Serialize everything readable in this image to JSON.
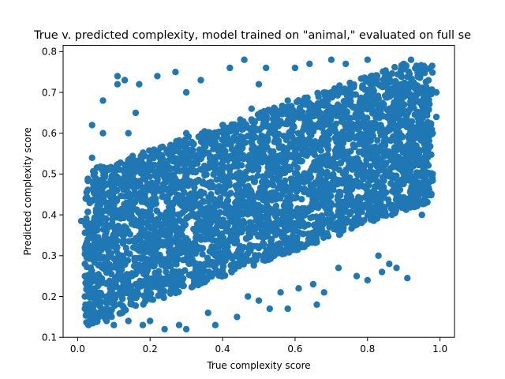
{
  "chart_data": {
    "type": "scatter",
    "title": "True v. predicted complexity, model trained on \"animal,\" evaluated on full se",
    "xlabel": "True complexity score",
    "ylabel": "Predicted complexity score",
    "xlim": [
      -0.04,
      1.04
    ],
    "ylim": [
      0.1,
      0.815
    ],
    "xticks": [
      {
        "value": 0.0,
        "label": "0.0"
      },
      {
        "value": 0.2,
        "label": "0.2"
      },
      {
        "value": 0.4,
        "label": "0.4"
      },
      {
        "value": 0.6,
        "label": "0.6"
      },
      {
        "value": 0.8,
        "label": "0.8"
      },
      {
        "value": 1.0,
        "label": "1.0"
      }
    ],
    "yticks": [
      {
        "value": 0.1,
        "label": "0.1"
      },
      {
        "value": 0.2,
        "label": "0.2"
      },
      {
        "value": 0.3,
        "label": "0.3"
      },
      {
        "value": 0.4,
        "label": "0.4"
      },
      {
        "value": 0.5,
        "label": "0.5"
      },
      {
        "value": 0.6,
        "label": "0.6"
      },
      {
        "value": 0.7,
        "label": "0.7"
      },
      {
        "value": 0.8,
        "label": "0.8"
      }
    ],
    "grid": false,
    "legend": "none",
    "marker_color": "#1f77b4",
    "points": [
      [
        0.01,
        0.385
      ],
      [
        0.02,
        0.32
      ],
      [
        0.02,
        0.28
      ],
      [
        0.02,
        0.25
      ],
      [
        0.02,
        0.2
      ],
      [
        0.02,
        0.17
      ],
      [
        0.03,
        0.13
      ],
      [
        0.03,
        0.3
      ],
      [
        0.04,
        0.54
      ],
      [
        0.04,
        0.62
      ],
      [
        0.05,
        0.49
      ],
      [
        0.06,
        0.4
      ],
      [
        0.06,
        0.33
      ],
      [
        0.07,
        0.68
      ],
      [
        0.07,
        0.6
      ],
      [
        0.05,
        0.16
      ],
      [
        0.08,
        0.14
      ],
      [
        0.09,
        0.22
      ],
      [
        0.1,
        0.13
      ],
      [
        0.11,
        0.72
      ],
      [
        0.11,
        0.74
      ],
      [
        0.13,
        0.73
      ],
      [
        0.14,
        0.14
      ],
      [
        0.17,
        0.72
      ],
      [
        0.18,
        0.13
      ],
      [
        0.2,
        0.14
      ],
      [
        0.22,
        0.74
      ],
      [
        0.24,
        0.12
      ],
      [
        0.27,
        0.75
      ],
      [
        0.28,
        0.13
      ],
      [
        0.3,
        0.12
      ],
      [
        0.34,
        0.73
      ],
      [
        0.36,
        0.16
      ],
      [
        0.38,
        0.13
      ],
      [
        0.42,
        0.76
      ],
      [
        0.44,
        0.15
      ],
      [
        0.46,
        0.78
      ],
      [
        0.47,
        0.2
      ],
      [
        0.5,
        0.19
      ],
      [
        0.52,
        0.76
      ],
      [
        0.53,
        0.17
      ],
      [
        0.56,
        0.21
      ],
      [
        0.58,
        0.17
      ],
      [
        0.6,
        0.76
      ],
      [
        0.61,
        0.22
      ],
      [
        0.64,
        0.77
      ],
      [
        0.65,
        0.23
      ],
      [
        0.66,
        0.18
      ],
      [
        0.68,
        0.21
      ],
      [
        0.7,
        0.78
      ],
      [
        0.72,
        0.27
      ],
      [
        0.74,
        0.77
      ],
      [
        0.77,
        0.25
      ],
      [
        0.8,
        0.24
      ],
      [
        0.8,
        0.78
      ],
      [
        0.83,
        0.3
      ],
      [
        0.84,
        0.26
      ],
      [
        0.86,
        0.28
      ],
      [
        0.88,
        0.27
      ],
      [
        0.9,
        0.77
      ],
      [
        0.91,
        0.245
      ],
      [
        0.92,
        0.78
      ],
      [
        0.95,
        0.4
      ],
      [
        0.96,
        0.46
      ],
      [
        0.97,
        0.5
      ],
      [
        0.98,
        0.5
      ],
      [
        0.98,
        0.6
      ],
      [
        0.99,
        0.7
      ],
      [
        0.99,
        0.64
      ],
      [
        0.96,
        0.66
      ],
      [
        0.12,
        0.3
      ],
      [
        0.15,
        0.25
      ],
      [
        0.18,
        0.33
      ],
      [
        0.2,
        0.42
      ],
      [
        0.22,
        0.48
      ],
      [
        0.25,
        0.55
      ],
      [
        0.28,
        0.36
      ],
      [
        0.3,
        0.6
      ],
      [
        0.32,
        0.45
      ],
      [
        0.35,
        0.52
      ],
      [
        0.38,
        0.3
      ],
      [
        0.4,
        0.62
      ],
      [
        0.42,
        0.4
      ],
      [
        0.45,
        0.5
      ],
      [
        0.48,
        0.66
      ],
      [
        0.5,
        0.35
      ],
      [
        0.52,
        0.58
      ],
      [
        0.55,
        0.45
      ],
      [
        0.58,
        0.68
      ],
      [
        0.6,
        0.4
      ],
      [
        0.62,
        0.55
      ],
      [
        0.65,
        0.62
      ],
      [
        0.68,
        0.48
      ],
      [
        0.7,
        0.7
      ],
      [
        0.72,
        0.38
      ],
      [
        0.75,
        0.6
      ],
      [
        0.78,
        0.52
      ],
      [
        0.8,
        0.66
      ],
      [
        0.82,
        0.44
      ],
      [
        0.85,
        0.58
      ],
      [
        0.88,
        0.7
      ],
      [
        0.9,
        0.5
      ],
      [
        0.92,
        0.62
      ],
      [
        0.94,
        0.56
      ],
      [
        0.1,
        0.5
      ],
      [
        0.08,
        0.45
      ],
      [
        0.14,
        0.6
      ],
      [
        0.16,
        0.65
      ],
      [
        0.24,
        0.28
      ],
      [
        0.26,
        0.22
      ],
      [
        0.34,
        0.25
      ],
      [
        0.44,
        0.28
      ],
      [
        0.54,
        0.3
      ],
      [
        0.64,
        0.34
      ],
      [
        0.74,
        0.42
      ],
      [
        0.84,
        0.46
      ],
      [
        0.06,
        0.25
      ],
      [
        0.1,
        0.35
      ],
      [
        0.3,
        0.7
      ],
      [
        0.5,
        0.72
      ]
    ]
  }
}
